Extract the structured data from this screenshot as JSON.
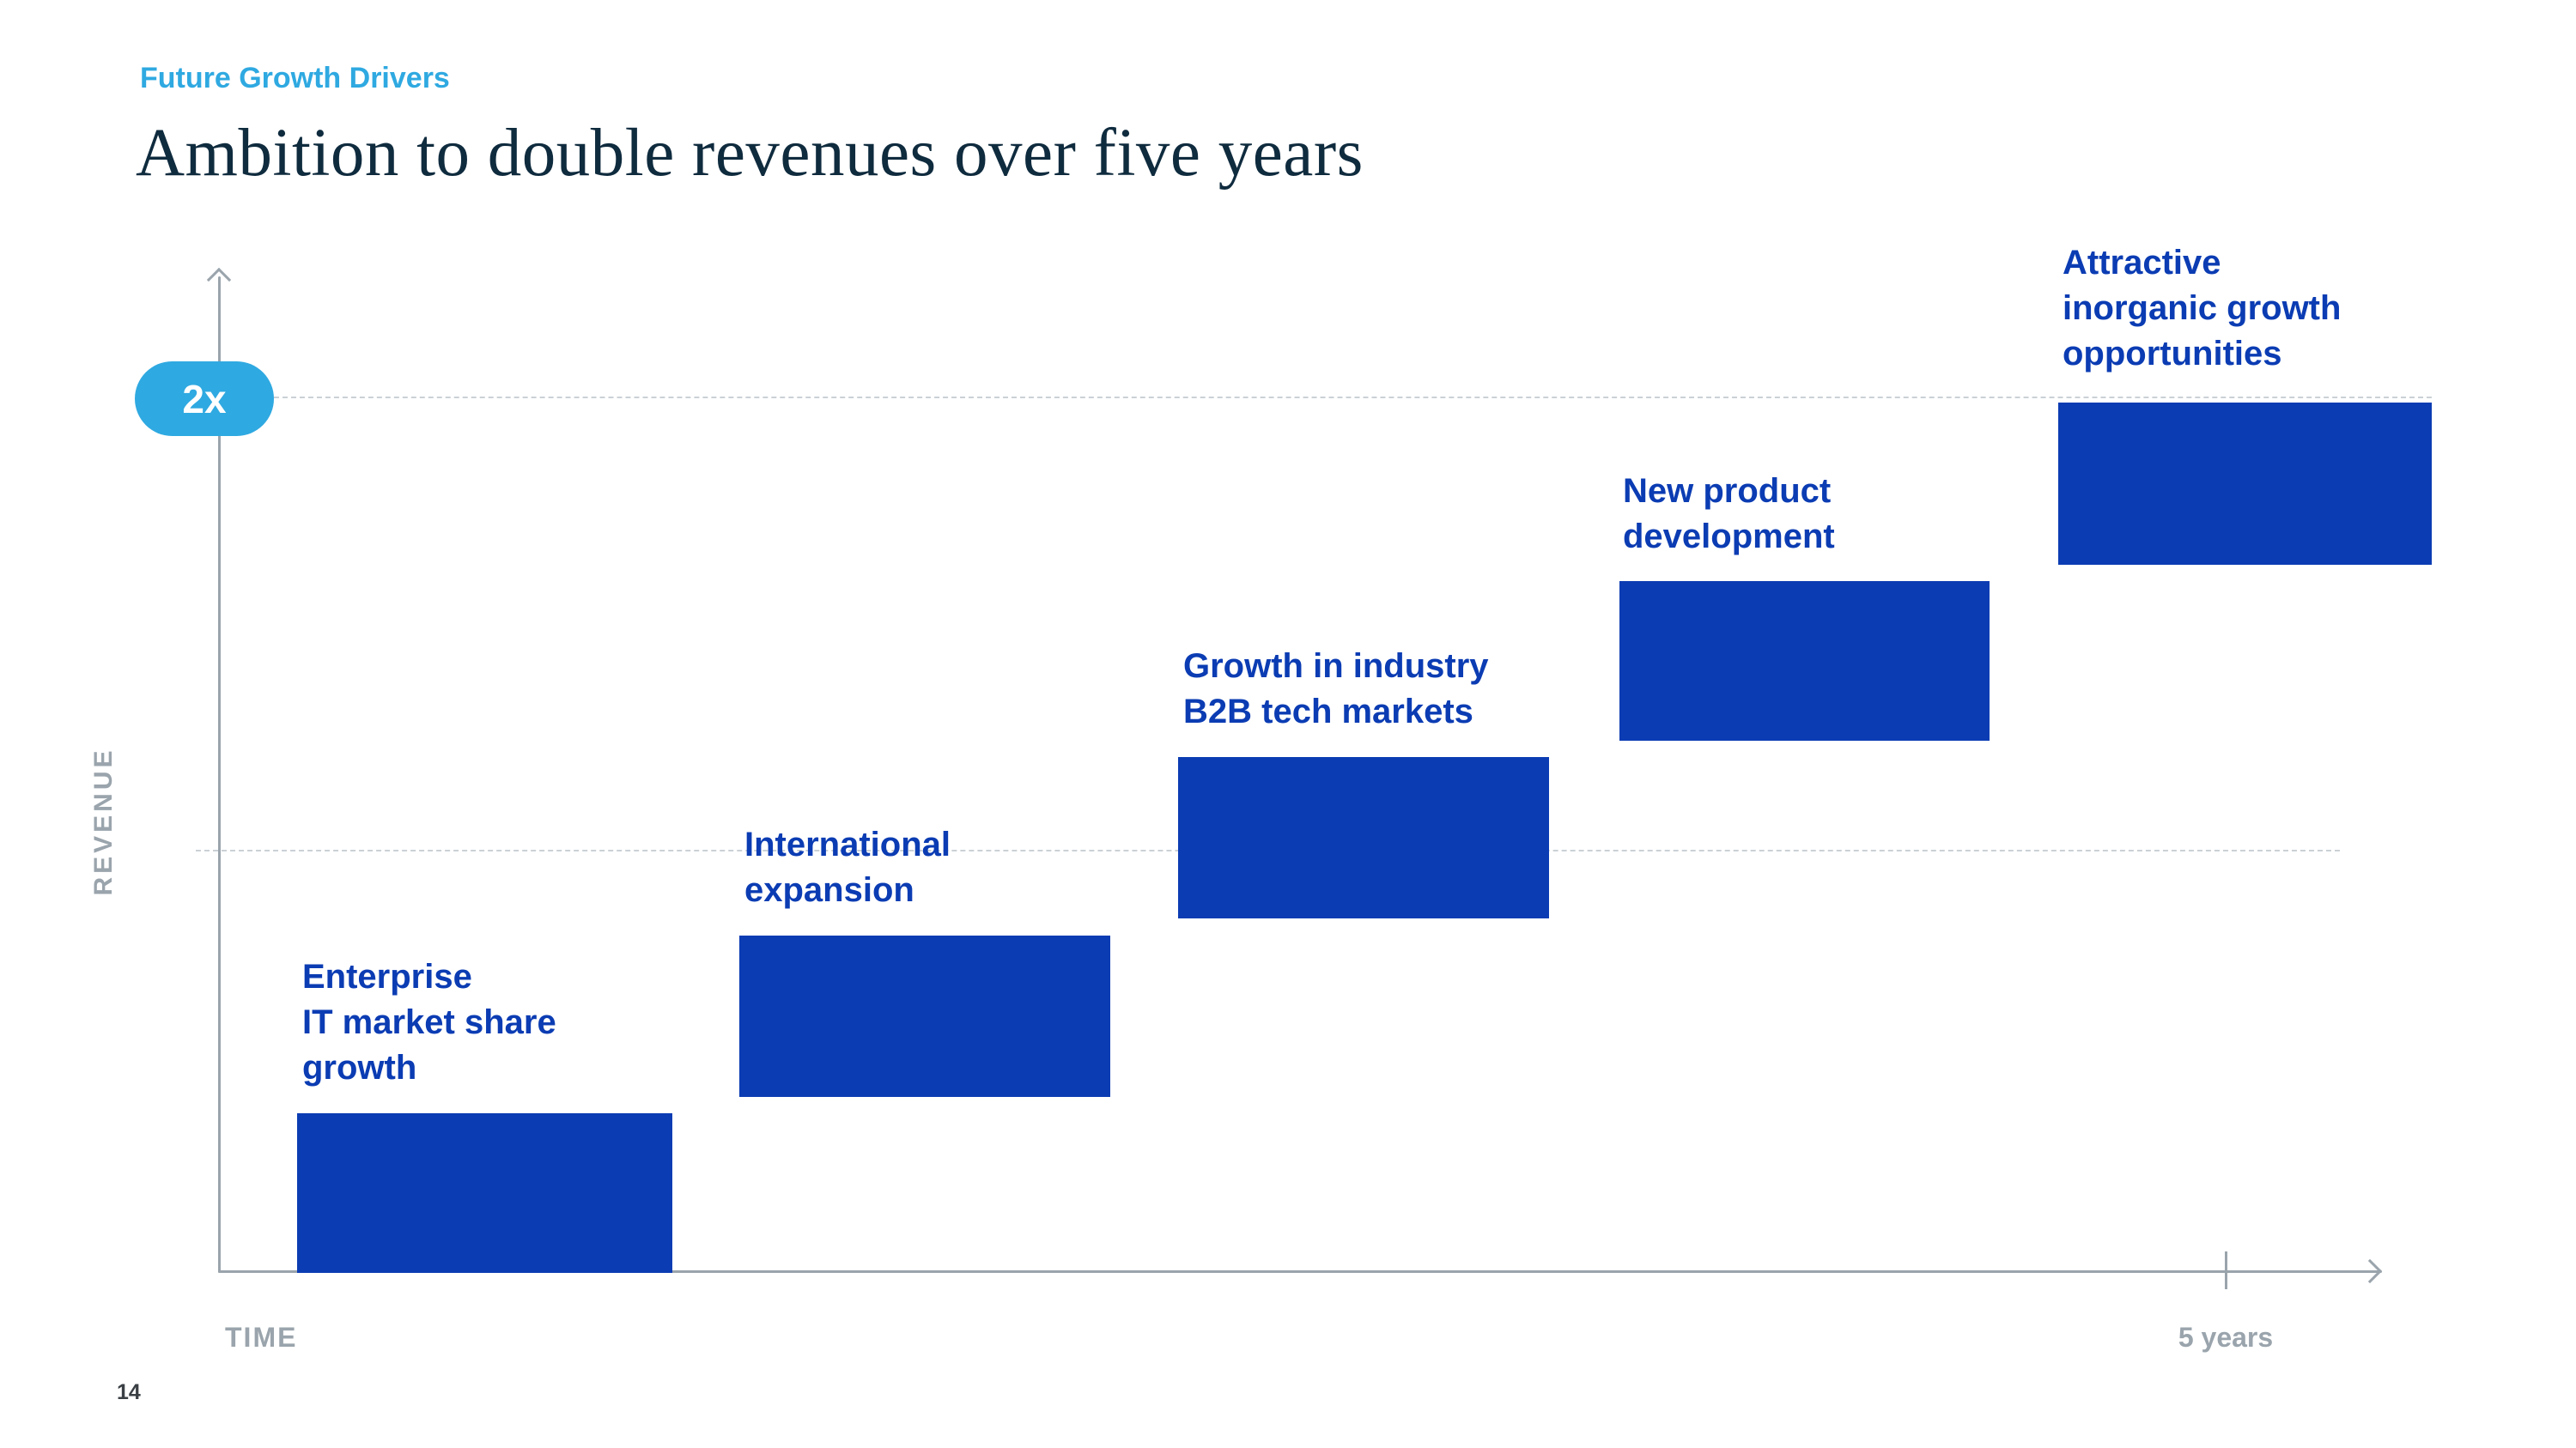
{
  "slide": {
    "eyebrow": "Future Growth Drivers",
    "title": "Ambition to double revenues over five years",
    "page_number": "14"
  },
  "chart_data": {
    "type": "bar",
    "variant": "ascending-staircase-step-chart",
    "title": "Ambition to double revenues over five years",
    "xlabel": "TIME",
    "ylabel": "REVENUE",
    "x_end_tick_label": "5 years",
    "badge_label": "2x",
    "ylim": [
      0,
      2.2
    ],
    "grid": "off",
    "legend": "none",
    "reference_lines": [
      {
        "label": "2x",
        "value": 2.0,
        "style": "dashed"
      },
      {
        "label": "",
        "value": 1.0,
        "style": "dashed"
      }
    ],
    "categories": [
      "Enterprise IT market share growth",
      "International expansion",
      "Growth in industry B2B tech markets",
      "New product development",
      "Attractive inorganic growth opportunities"
    ],
    "bars_estimated_revenue_multiple_spans": [
      {
        "from": 0.05,
        "to": 0.42
      },
      {
        "from": 0.45,
        "to": 0.81
      },
      {
        "from": 0.85,
        "to": 1.21
      },
      {
        "from": 1.24,
        "to": 1.6
      },
      {
        "from": 1.63,
        "to": 2.0
      }
    ],
    "drivers": [
      {
        "label": "Enterprise\nIT market share\ngrowth"
      },
      {
        "label": "International\nexpansion"
      },
      {
        "label": "Growth in industry\nB2B tech markets"
      },
      {
        "label": "New product\ndevelopment"
      },
      {
        "label": "Attractive\ninorganic growth\nopportunities"
      }
    ]
  },
  "colors": {
    "accent_cyan": "#2FA9E1",
    "bar_blue": "#0B3CB3",
    "title_navy": "#0F2B3E",
    "axis_gray": "#9AA4AC",
    "dash_gray": "#CBD1D6",
    "badge_text": "#FFFFFF"
  }
}
